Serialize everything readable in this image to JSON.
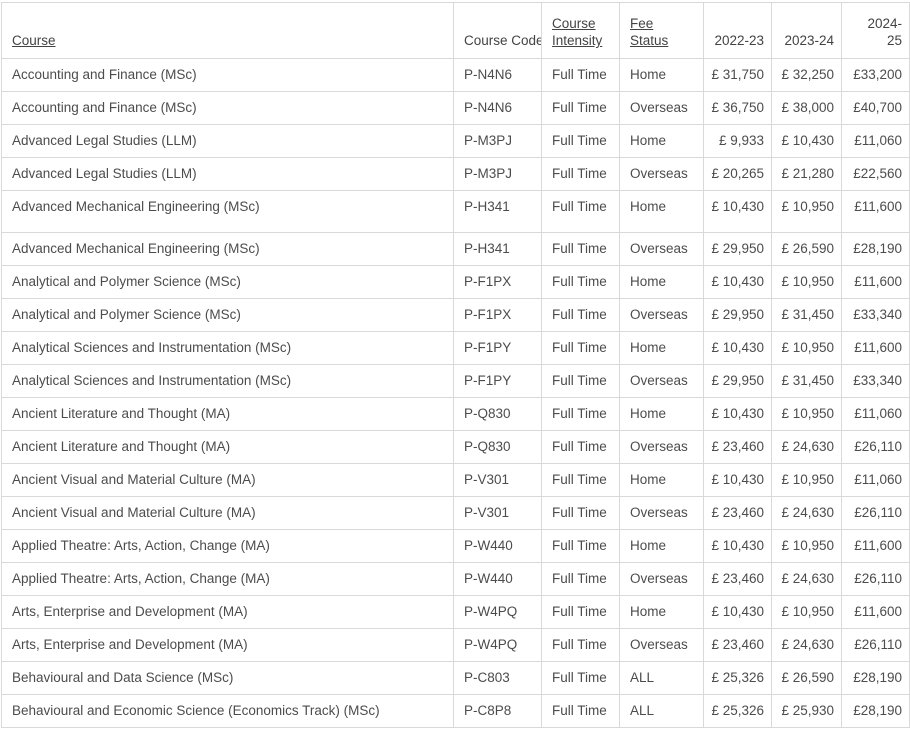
{
  "colors": {
    "background": "#ffffff",
    "border": "#d9d9d9",
    "body_text": "#4c4c4c",
    "header_text": "#434343"
  },
  "table": {
    "columns": [
      {
        "id": "course",
        "label": "Course",
        "sortable": true,
        "align": "left"
      },
      {
        "id": "course_code",
        "label": "Course Code",
        "sortable": false,
        "align": "left"
      },
      {
        "id": "course_intensity",
        "label": "Course Intensity",
        "sortable": true,
        "align": "left"
      },
      {
        "id": "fee_status",
        "label": "Fee Status",
        "sortable": true,
        "align": "left"
      },
      {
        "id": "fee_2022_23",
        "label": "2022-23",
        "sortable": false,
        "align": "right"
      },
      {
        "id": "fee_2023_24",
        "label": "2023-24",
        "sortable": false,
        "align": "right"
      },
      {
        "id": "fee_2024_25",
        "label": "2024-25",
        "sortable": false,
        "align": "right"
      }
    ],
    "rows": [
      [
        "Accounting and Finance (MSc)",
        "P-N4N6",
        "Full Time",
        "Home",
        "£ 31,750",
        "£ 32,250",
        "£33,200"
      ],
      [
        "Accounting and Finance (MSc)",
        "P-N4N6",
        "Full Time",
        "Overseas",
        "£ 36,750",
        "£ 38,000",
        "£40,700"
      ],
      [
        "Advanced Legal Studies (LLM)",
        "P-M3PJ",
        "Full Time",
        "Home",
        "£ 9,933",
        "£ 10,430",
        "£11,060"
      ],
      [
        "Advanced Legal Studies (LLM)",
        "P-M3PJ",
        "Full Time",
        "Overseas",
        "£ 20,265",
        "£ 21,280",
        "£22,560"
      ],
      [
        "Advanced Mechanical Engineering (MSc)",
        "P-H341",
        "Full Time",
        "Home",
        "£ 10,430",
        "£ 10,950",
        "£11,600"
      ],
      [
        "Advanced Mechanical Engineering (MSc)",
        "P-H341",
        "Full Time",
        "Overseas",
        "£ 29,950",
        "£ 26,590",
        "£28,190"
      ],
      [
        "Analytical and Polymer Science (MSc)",
        "P-F1PX",
        "Full Time",
        "Home",
        "£ 10,430",
        "£ 10,950",
        "£11,600"
      ],
      [
        "Analytical and Polymer Science (MSc)",
        "P-F1PX",
        "Full Time",
        "Overseas",
        "£ 29,950",
        "£ 31,450",
        "£33,340"
      ],
      [
        "Analytical Sciences and Instrumentation (MSc)",
        "P-F1PY",
        "Full Time",
        "Home",
        "£ 10,430",
        "£ 10,950",
        "£11,600"
      ],
      [
        "Analytical Sciences and Instrumentation (MSc)",
        "P-F1PY",
        "Full Time",
        "Overseas",
        "£ 29,950",
        "£ 31,450",
        "£33,340"
      ],
      [
        "Ancient Literature and Thought (MA)",
        "P-Q830",
        "Full Time",
        "Home",
        "£ 10,430",
        "£ 10,950",
        "£11,060"
      ],
      [
        "Ancient Literature and Thought (MA)",
        "P-Q830",
        "Full Time",
        "Overseas",
        "£ 23,460",
        "£ 24,630",
        "£26,110"
      ],
      [
        "Ancient Visual and Material Culture (MA)",
        "P-V301",
        "Full Time",
        "Home",
        "£ 10,430",
        "£ 10,950",
        "£11,060"
      ],
      [
        "Ancient Visual and Material Culture (MA)",
        "P-V301",
        "Full Time",
        "Overseas",
        "£ 23,460",
        "£ 24,630",
        "£26,110"
      ],
      [
        "Applied Theatre: Arts, Action, Change (MA)",
        "P-W440",
        "Full Time",
        "Home",
        "£ 10,430",
        "£ 10,950",
        "£11,600"
      ],
      [
        "Applied Theatre: Arts, Action, Change (MA)",
        "P-W440",
        "Full Time",
        "Overseas",
        "£ 23,460",
        "£ 24,630",
        "£26,110"
      ],
      [
        "Arts, Enterprise and Development (MA)",
        "P-W4PQ",
        "Full Time",
        "Home",
        "£ 10,430",
        "£ 10,950",
        "£11,600"
      ],
      [
        "Arts, Enterprise and Development (MA)",
        "P-W4PQ",
        "Full Time",
        "Overseas",
        "£ 23,460",
        "£ 24,630",
        "£26,110"
      ],
      [
        "Behavioural and Data Science (MSc)",
        "P-C803",
        "Full Time",
        "ALL",
        "£ 25,326",
        "£ 26,590",
        "£28,190"
      ],
      [
        "Behavioural and Economic Science (Economics Track) (MSc)",
        "P-C8P8",
        "Full Time",
        "ALL",
        "£ 25,326",
        "£ 25,930",
        "£28,190"
      ]
    ]
  }
}
